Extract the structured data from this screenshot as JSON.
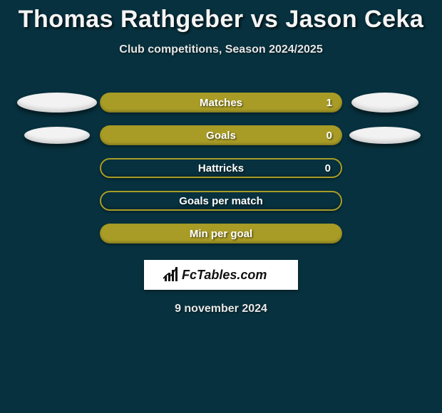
{
  "title": "Thomas Rathgeber vs Jason Ceka",
  "subtitle": "Club competitions, Season 2024/2025",
  "footer_date": "9 november 2024",
  "logo_text": "FcTables.com",
  "background_color": "#07313e",
  "bar_color_filled": "#a89c26",
  "bar_color_outline": "#a89c26",
  "ellipse_color": "#f2f2f2",
  "text_color": "#ffffff",
  "rows": [
    {
      "label": "Matches",
      "value": "1",
      "filled": true,
      "has_value": true,
      "left_ellipse": {
        "show": true,
        "w": 112,
        "h": 28
      },
      "right_ellipse": {
        "show": true,
        "w": 94,
        "h": 28
      }
    },
    {
      "label": "Goals",
      "value": "0",
      "filled": true,
      "has_value": true,
      "left_ellipse": {
        "show": true,
        "w": 92,
        "h": 24
      },
      "right_ellipse": {
        "show": true,
        "w": 100,
        "h": 24
      }
    },
    {
      "label": "Hattricks",
      "value": "0",
      "filled": false,
      "has_value": true,
      "left_ellipse": {
        "show": false,
        "w": 0,
        "h": 0
      },
      "right_ellipse": {
        "show": false,
        "w": 0,
        "h": 0
      }
    },
    {
      "label": "Goals per match",
      "value": "",
      "filled": false,
      "has_value": false,
      "left_ellipse": {
        "show": false,
        "w": 0,
        "h": 0
      },
      "right_ellipse": {
        "show": false,
        "w": 0,
        "h": 0
      }
    },
    {
      "label": "Min per goal",
      "value": "",
      "filled": true,
      "has_value": false,
      "left_ellipse": {
        "show": false,
        "w": 0,
        "h": 0
      },
      "right_ellipse": {
        "show": false,
        "w": 0,
        "h": 0
      }
    }
  ]
}
